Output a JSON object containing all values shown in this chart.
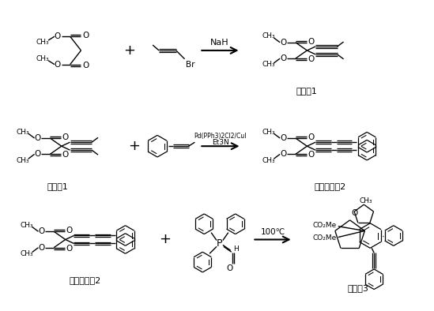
{
  "background_color": "#ffffff",
  "labels": {
    "compound1_r1": "化合物1",
    "compound1_r2": "化合物1",
    "precursor2_r2": "前体化合物2",
    "precursor2_r3": "前体化合物2",
    "compound3": "化合物3",
    "reagent1": "NaH",
    "reagent2a": "Pd(PPh3)2Cl2/CuI",
    "reagent2b": "Et3N",
    "reagent3": "100℃"
  },
  "figsize": [
    5.49,
    3.94
  ],
  "dpi": 100
}
